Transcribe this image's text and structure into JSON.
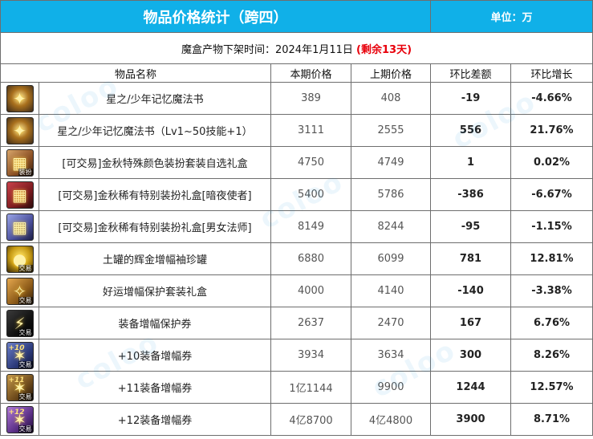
{
  "title": "物品价格统计（跨四）",
  "unit": "单位：万",
  "subtitle": {
    "label": "魔盒产物下架时间：2024年1月11日",
    "remaining": "(剩余13天)"
  },
  "headers": [
    "物品名称",
    "本期价格",
    "上期价格",
    "环比差额",
    "环比增长"
  ],
  "rows": [
    {
      "icon": "magic-book-icon",
      "name": "星之/少年记忆魔法书",
      "current": "389",
      "previous": "408",
      "diff": "-19",
      "pct": "-4.66%",
      "trend": "down"
    },
    {
      "icon": "magic-book-icon",
      "name": "星之/少年记忆魔法书（Lv1~50技能+1）",
      "current": "3111",
      "previous": "2555",
      "diff": "556",
      "pct": "21.76%",
      "trend": "up"
    },
    {
      "icon": "costume-box-icon",
      "name": "[可交易]金秋特殊颜色装扮套装自选礼盒",
      "current": "4750",
      "previous": "4749",
      "diff": "1",
      "pct": "0.02%",
      "trend": "up"
    },
    {
      "icon": "red-gift-box-icon",
      "name": "[可交易]金秋稀有特别装扮礼盒[暗夜使者]",
      "current": "5400",
      "previous": "5786",
      "diff": "-386",
      "pct": "-6.67%",
      "trend": "down"
    },
    {
      "icon": "blue-gift-box-icon",
      "name": "[可交易]金秋稀有特别装扮礼盒[男女法师]",
      "current": "8149",
      "previous": "8244",
      "diff": "-95",
      "pct": "-1.15%",
      "trend": "down"
    },
    {
      "icon": "golden-jar-icon",
      "name": "土罐的辉金增幅袖珍罐",
      "current": "6880",
      "previous": "6099",
      "diff": "781",
      "pct": "12.81%",
      "trend": "up"
    },
    {
      "icon": "lucky-box-icon",
      "name": "好运增幅保护套装礼盒",
      "current": "4000",
      "previous": "4140",
      "diff": "-140",
      "pct": "-3.38%",
      "trend": "down"
    },
    {
      "icon": "protect-ticket-icon",
      "name": "装备增幅保护券",
      "current": "2637",
      "previous": "2470",
      "diff": "167",
      "pct": "6.76%",
      "trend": "up"
    },
    {
      "icon": "plus10-ticket-icon",
      "name": "+10装备增幅券",
      "current": "3934",
      "previous": "3634",
      "diff": "300",
      "pct": "8.26%",
      "trend": "up"
    },
    {
      "icon": "plus11-ticket-icon",
      "name": "+11装备增幅券",
      "current": "1亿1144",
      "previous": "9900",
      "diff": "1244",
      "pct": "12.57%",
      "trend": "up"
    },
    {
      "icon": "plus12-ticket-icon",
      "name": "+12装备增幅券",
      "current": "4亿8700",
      "previous": "4亿4800",
      "diff": "3900",
      "pct": "8.71%",
      "trend": "up"
    }
  ],
  "icon_labels": {
    "trade_tag": "交易",
    "costume_tag": "装扮",
    "plus10": "+10",
    "plus11": "+11",
    "plus12": "+12"
  },
  "colors": {
    "header_bg": "#10b0e8",
    "up": "#e8000b",
    "down": "#1aa34a"
  }
}
